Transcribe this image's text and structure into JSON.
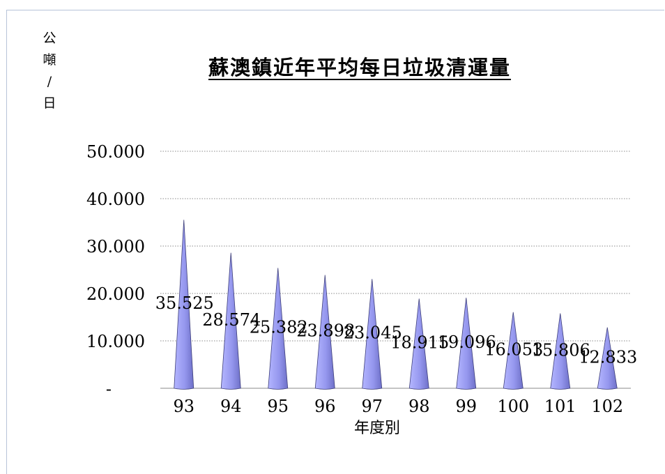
{
  "title": "蘇澳鎮近年平均每日垃圾清運量",
  "ylabel_chars": [
    "公",
    "噸",
    "/",
    "日"
  ],
  "xlabel": "年度別",
  "chart_data": {
    "type": "bar",
    "title": "蘇澳鎮近年平均每日垃圾清運量",
    "xlabel": "年度別",
    "ylabel": "公噸/日",
    "categories": [
      "93",
      "94",
      "95",
      "96",
      "97",
      "98",
      "99",
      "100",
      "101",
      "102"
    ],
    "values": [
      35.525,
      28.574,
      25.382,
      23.898,
      23.045,
      18.915,
      19.096,
      16.053,
      15.806,
      12.833
    ],
    "data_labels": [
      "35.525",
      "28.574",
      "25.382",
      "23.898",
      "23.045",
      "18.915",
      "19.096",
      "16.053",
      "15.806",
      "12.833"
    ],
    "ylim": [
      0,
      50
    ],
    "yticks": [
      0,
      10,
      20,
      30,
      40,
      50
    ],
    "ytick_labels": [
      "-",
      "10.000",
      "20.000",
      "30.000",
      "40.000",
      "50.000"
    ],
    "grid": true,
    "legend": "none",
    "bar_shape": "cone",
    "bar_color": "#9a9cf0"
  }
}
